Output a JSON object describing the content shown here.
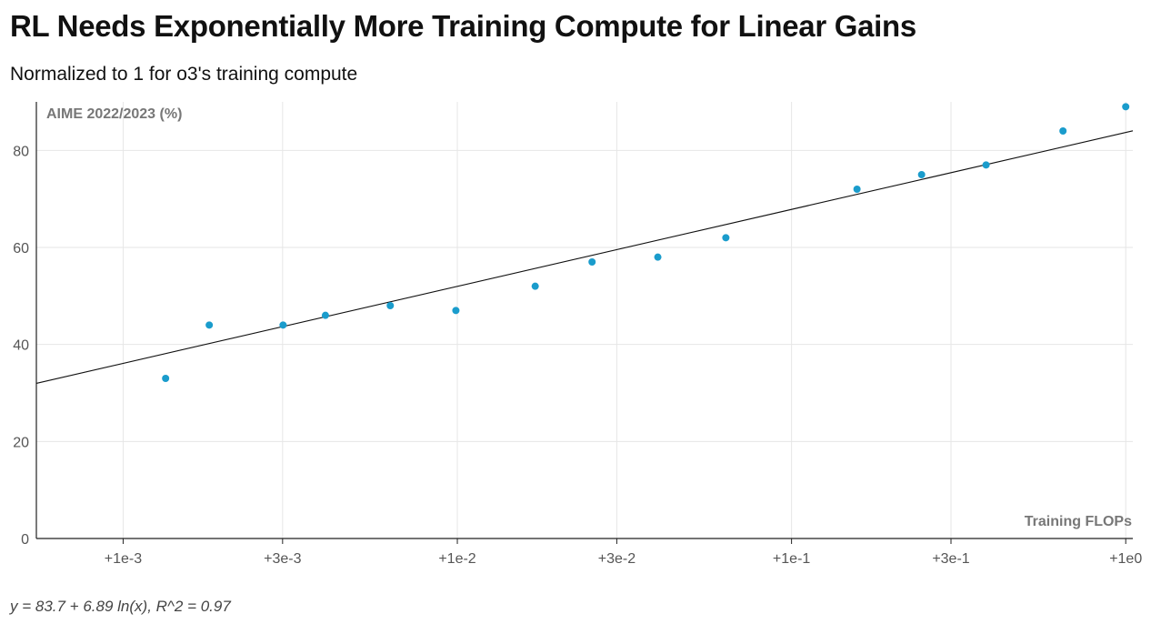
{
  "colors": {
    "point": "#1a9ccc",
    "trendline": "#111111",
    "grid": "#e6e6e6",
    "axis": "#222222"
  },
  "chart_data": {
    "type": "scatter",
    "title": "RL Needs Exponentially More Training Compute for Linear Gains",
    "subtitle": "Normalized to 1 for o3's training compute",
    "xlabel": "Training FLOPs",
    "ylabel": "AIME 2022/2023 (%)",
    "x_scale": "log",
    "xlim": [
      0.00055,
      1.05
    ],
    "ylim": [
      0,
      90
    ],
    "x_ticks": [
      {
        "value": 0.001,
        "label": "+1e-3"
      },
      {
        "value": 0.003,
        "label": "+3e-3"
      },
      {
        "value": 0.01,
        "label": "+1e-2"
      },
      {
        "value": 0.03,
        "label": "+3e-2"
      },
      {
        "value": 0.1,
        "label": "+1e-1"
      },
      {
        "value": 0.3,
        "label": "+3e-1"
      },
      {
        "value": 1,
        "label": "+1e0"
      }
    ],
    "y_ticks": [
      {
        "value": 0,
        "label": "0"
      },
      {
        "value": 20,
        "label": "20"
      },
      {
        "value": 40,
        "label": "40"
      },
      {
        "value": 60,
        "label": "60"
      },
      {
        "value": 80,
        "label": "80"
      }
    ],
    "grid": true,
    "points": [
      {
        "x": 0.00134,
        "y": 33
      },
      {
        "x": 0.00181,
        "y": 44
      },
      {
        "x": 0.00301,
        "y": 44
      },
      {
        "x": 0.00403,
        "y": 46
      },
      {
        "x": 0.0063,
        "y": 48
      },
      {
        "x": 0.0099,
        "y": 47
      },
      {
        "x": 0.0171,
        "y": 52
      },
      {
        "x": 0.0253,
        "y": 57
      },
      {
        "x": 0.0398,
        "y": 58
      },
      {
        "x": 0.0636,
        "y": 62
      },
      {
        "x": 0.157,
        "y": 72
      },
      {
        "x": 0.245,
        "y": 75
      },
      {
        "x": 0.382,
        "y": 77
      },
      {
        "x": 0.649,
        "y": 84
      },
      {
        "x": 1.0,
        "y": 89
      }
    ],
    "trendline": {
      "type": "logarithmic",
      "intercept": 83.7,
      "slope": 6.89,
      "r2": 0.97,
      "equation": "y = 83.7 + 6.89 ln(x), R^2 = 0.97"
    }
  }
}
